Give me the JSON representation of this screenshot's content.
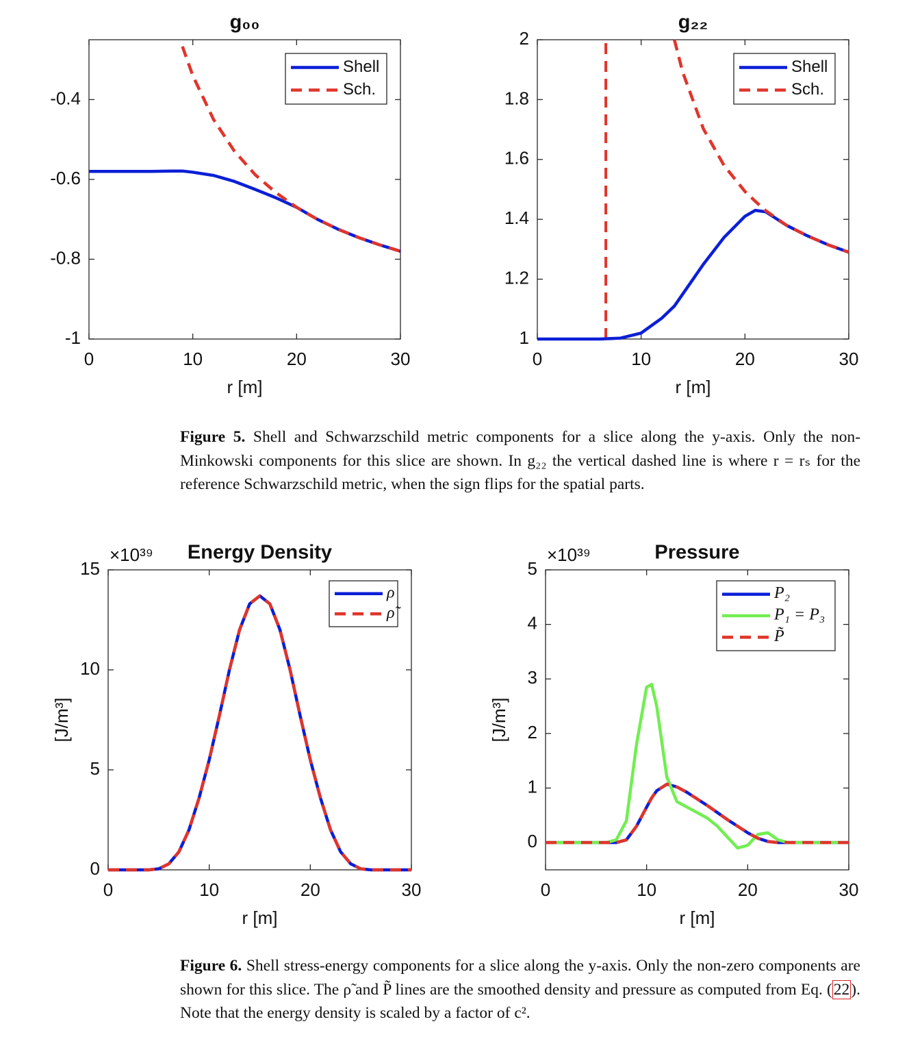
{
  "chart_data": [
    {
      "type": "line",
      "title": "g₀₀",
      "xlabel": "r [m]",
      "xlim": [
        0,
        30
      ],
      "xticks": [
        0,
        10,
        20,
        30
      ],
      "ylim": [
        -1,
        -0.25
      ],
      "yticks": [
        -1,
        -0.8,
        -0.6,
        -0.4
      ],
      "legend": "northeast",
      "x": [
        0,
        2,
        4,
        6,
        8,
        9,
        10,
        12,
        14,
        16,
        18,
        20,
        22,
        24,
        26,
        28,
        30
      ],
      "series": [
        {
          "name": "Shell",
          "color": "#0b1fd6",
          "dashed": false,
          "values": [
            -0.58,
            -0.58,
            -0.58,
            -0.58,
            -0.579,
            -0.579,
            -0.582,
            -0.59,
            -0.605,
            -0.625,
            -0.646,
            -0.67,
            -0.7,
            -0.725,
            -0.746,
            -0.764,
            -0.78
          ]
        },
        {
          "name": "Sch.",
          "color": "#e0352b",
          "dashed": true,
          "values": [
            null,
            null,
            null,
            null,
            null,
            -0.267,
            -0.34,
            -0.45,
            -0.529,
            -0.588,
            -0.633,
            -0.67,
            -0.7,
            -0.725,
            -0.746,
            -0.764,
            -0.78
          ]
        }
      ]
    },
    {
      "type": "line",
      "title": "g₂₂",
      "xlabel": "r [m]",
      "xlim": [
        0,
        30
      ],
      "xticks": [
        0,
        10,
        20,
        30
      ],
      "ylim": [
        1,
        2
      ],
      "yticks": [
        1,
        1.2,
        1.4,
        1.6,
        1.8,
        2
      ],
      "legend": "northeast",
      "x": [
        0,
        2,
        4,
        6,
        8,
        10,
        12,
        13.2,
        14,
        16,
        18,
        20,
        21,
        22,
        24,
        26,
        28,
        30
      ],
      "series": [
        {
          "name": "Shell",
          "color": "#0b1fd6",
          "dashed": false,
          "values": [
            1,
            1,
            1,
            1,
            1.003,
            1.02,
            1.07,
            1.11,
            1.15,
            1.25,
            1.34,
            1.41,
            1.43,
            1.425,
            1.38,
            1.345,
            1.315,
            1.29
          ]
        },
        {
          "name": "Sch.",
          "color": "#e0352b",
          "dashed": true,
          "values": [
            null,
            null,
            null,
            null,
            null,
            null,
            null,
            2.0,
            1.892,
            1.702,
            1.579,
            1.493,
            1.46,
            1.429,
            1.38,
            1.345,
            1.315,
            1.29
          ]
        }
      ],
      "vlines": [
        {
          "x": 6.6,
          "color": "#e0352b",
          "dashed": true
        }
      ]
    },
    {
      "type": "line",
      "title": "Energy Density",
      "xlabel": "r [m]",
      "ylabel": "[J/m³]",
      "y_multiplier": "×10³⁹",
      "xlim": [
        0,
        30
      ],
      "xticks": [
        0,
        10,
        20,
        30
      ],
      "ylim": [
        0,
        15
      ],
      "yticks": [
        0,
        5,
        10,
        15
      ],
      "legend": "northeast",
      "x": [
        0,
        1,
        2,
        3,
        4,
        5,
        6,
        7,
        8,
        9,
        10,
        11,
        12,
        13,
        14,
        15,
        16,
        17,
        18,
        19,
        20,
        21,
        22,
        23,
        24,
        25,
        26,
        27,
        28,
        29,
        30
      ],
      "series": [
        {
          "name": "ρ",
          "color": "#0b1fd6",
          "dashed": false,
          "values": [
            0,
            0,
            0,
            0,
            0,
            0.05,
            0.3,
            0.9,
            2.0,
            3.6,
            5.5,
            7.7,
            10,
            12,
            13.3,
            13.7,
            13.3,
            12,
            10,
            7.7,
            5.5,
            3.6,
            2.0,
            0.9,
            0.3,
            0.05,
            0,
            0,
            0,
            0,
            0
          ]
        },
        {
          "name": "ρ̃",
          "color": "#e0352b",
          "dashed": true,
          "values": [
            0,
            0,
            0,
            0,
            0,
            0.05,
            0.3,
            0.9,
            2.0,
            3.6,
            5.5,
            7.7,
            10,
            12,
            13.3,
            13.7,
            13.3,
            12,
            10,
            7.7,
            5.5,
            3.6,
            2.0,
            0.9,
            0.3,
            0.05,
            0,
            0,
            0,
            0,
            0
          ]
        }
      ]
    },
    {
      "type": "line",
      "title": "Pressure",
      "xlabel": "r [m]",
      "ylabel": "[J/m³]",
      "y_multiplier": "×10³⁹",
      "xlim": [
        0,
        30
      ],
      "xticks": [
        0,
        10,
        20,
        30
      ],
      "ylim": [
        -0.5,
        5
      ],
      "yticks": [
        0,
        1,
        2,
        3,
        4,
        5
      ],
      "legend": "northeast",
      "x": [
        0,
        1,
        2,
        3,
        4,
        5,
        6,
        7,
        8,
        9,
        10,
        10.5,
        11,
        12,
        13,
        14,
        15,
        16,
        17,
        18,
        19,
        20,
        21,
        22,
        23,
        24,
        25,
        26,
        27,
        28,
        29,
        30
      ],
      "series": [
        {
          "name": "P₂",
          "color": "#0b1fd6",
          "dashed": false,
          "values": [
            0,
            0,
            0,
            0,
            0,
            0,
            0,
            0,
            0.05,
            0.3,
            0.65,
            0.82,
            0.95,
            1.07,
            1.02,
            0.92,
            0.8,
            0.68,
            0.55,
            0.42,
            0.3,
            0.18,
            0.08,
            0.02,
            0,
            0,
            0,
            0,
            0,
            0,
            0,
            0
          ]
        },
        {
          "name": "P₁ = P₃",
          "color": "#72ee52",
          "dashed": false,
          "values": [
            0,
            0,
            0,
            0,
            0,
            0,
            0,
            0.05,
            0.4,
            1.8,
            2.85,
            2.9,
            2.5,
            1.2,
            0.75,
            0.65,
            0.55,
            0.45,
            0.3,
            0.1,
            -0.1,
            -0.05,
            0.15,
            0.18,
            0.05,
            0,
            0,
            0,
            0,
            0,
            0,
            0
          ]
        },
        {
          "name": "P̃",
          "color": "#e0352b",
          "dashed": true,
          "values": [
            0,
            0,
            0,
            0,
            0,
            0,
            0,
            0,
            0.05,
            0.3,
            0.65,
            0.82,
            0.95,
            1.07,
            1.02,
            0.92,
            0.8,
            0.68,
            0.55,
            0.42,
            0.3,
            0.18,
            0.08,
            0.02,
            0,
            0,
            0,
            0,
            0,
            0,
            0,
            0
          ]
        }
      ]
    }
  ],
  "captions": [
    {
      "label": "Figure 5.",
      "text": "Shell and Schwarzschild metric components for a slice along the y-axis. Only the non-Minkowski components for this slice are shown. In g₂₂ the vertical dashed line is where r = rₛ for the reference Schwarzschild metric, when the sign flips for the spatial parts."
    },
    {
      "label": "Figure 6.",
      "text": "Shell stress-energy components for a slice along the y-axis. Only the non-zero components are shown for this slice. The ρ̃ and P̃ lines are the smoothed density and pressure as computed from Eq. (",
      "ref": "22",
      "text_after": "). Note that the energy density is scaled by a factor of c²."
    }
  ]
}
